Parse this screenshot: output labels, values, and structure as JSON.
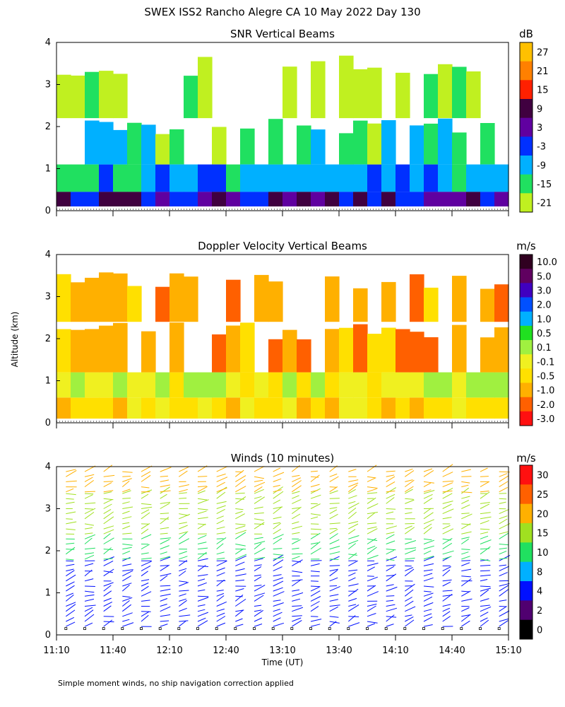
{
  "page_title": "SWEX ISS2 Rancho Alegre CA  10 May 2022 Day 130",
  "footnote": "Simple moment winds, no ship navigation correction applied",
  "shared_axes": {
    "ylabel": "Altitude (km)",
    "xlabel": "Time (UT)",
    "x_ticks": [
      "11:10",
      "11:40",
      "12:10",
      "12:40",
      "13:10",
      "13:40",
      "14:10",
      "14:40",
      "15:10"
    ],
    "x_range": [
      "11:10",
      "15:10"
    ],
    "y_ticks": [
      "0",
      "1",
      "2",
      "3",
      "4"
    ],
    "y_range_km": [
      0,
      4
    ]
  },
  "chart_data": [
    {
      "type": "heatmap",
      "title": "SNR Vertical Beams",
      "units": "dB",
      "colorbar_labels": [
        "27",
        "21",
        "15",
        "9",
        "3",
        "-3",
        "-9",
        "-15",
        "-21"
      ],
      "colorbar_colors": [
        "#ffc000",
        "#ff8000",
        "#ff2000",
        "#400040",
        "#6000a0",
        "#0030ff",
        "#00b0ff",
        "#20e060",
        "#c0f020"
      ],
      "x_range": [
        "11:10",
        "15:10"
      ],
      "y_range_km": [
        0,
        4
      ],
      "layers": [
        {
          "from_km": 0.1,
          "to_km": 0.45,
          "level": "3"
        },
        {
          "from_km": 0.45,
          "to_km": 1.1,
          "level": "-9"
        },
        {
          "from_km": 1.1,
          "to_km": 2.2,
          "level": "-15"
        },
        {
          "from_km": 2.2,
          "to_km": 3.7,
          "level": "-21"
        }
      ]
    },
    {
      "type": "heatmap",
      "title": "Doppler Velocity Vertical Beams",
      "units": "m/s",
      "colorbar_labels": [
        "10.0",
        "5.0",
        "3.0",
        "2.0",
        "1.0",
        "0.5",
        "0.1",
        "-0.1",
        "-0.5",
        "-1.0",
        "-2.0",
        "-3.0"
      ],
      "colorbar_colors": [
        "#300020",
        "#600060",
        "#4000c0",
        "#0050ff",
        "#00b0ff",
        "#20e020",
        "#a0f040",
        "#f0f020",
        "#ffe000",
        "#ffb000",
        "#ff6000",
        "#ff1010"
      ],
      "x_range": [
        "11:10",
        "15:10"
      ],
      "y_range_km": [
        0,
        4
      ],
      "layers": [
        {
          "from_km": 0.1,
          "to_km": 0.6,
          "level": "-0.5"
        },
        {
          "from_km": 0.6,
          "to_km": 1.2,
          "level": "-0.1"
        },
        {
          "from_km": 1.2,
          "to_km": 2.4,
          "level": "-1.0"
        },
        {
          "from_km": 2.4,
          "to_km": 3.6,
          "level": "-1.0"
        }
      ]
    },
    {
      "type": "scatter",
      "title": "Winds (10 minutes)",
      "units": "m/s",
      "colorbar_labels": [
        "30",
        "25",
        "20",
        "15",
        "10",
        "8",
        "4",
        "2",
        "0"
      ],
      "colorbar_colors": [
        "#ff1010",
        "#ff6000",
        "#ffb000",
        "#a0e020",
        "#20e060",
        "#00b0ff",
        "#0010ff",
        "#500070",
        "#000000"
      ],
      "x_range": [
        "11:10",
        "15:10"
      ],
      "y_range_km": [
        0,
        4
      ],
      "profile_times": [
        "11:15",
        "11:25",
        "11:35",
        "11:45",
        "11:55",
        "12:05",
        "12:15",
        "12:25",
        "12:35",
        "12:45",
        "12:55",
        "13:05",
        "13:15",
        "13:25",
        "13:35",
        "13:45",
        "13:55",
        "14:05",
        "14:15",
        "14:25",
        "14:35",
        "14:45",
        "14:55",
        "15:05"
      ],
      "speed_by_altitude": [
        {
          "from_km": 0.2,
          "to_km": 1.8,
          "speed_ms": 4
        },
        {
          "from_km": 1.8,
          "to_km": 2.4,
          "speed_ms": 10
        },
        {
          "from_km": 2.4,
          "to_km": 3.4,
          "speed_ms": 15
        },
        {
          "from_km": 3.4,
          "to_km": 4.0,
          "speed_ms": 20
        }
      ]
    }
  ]
}
